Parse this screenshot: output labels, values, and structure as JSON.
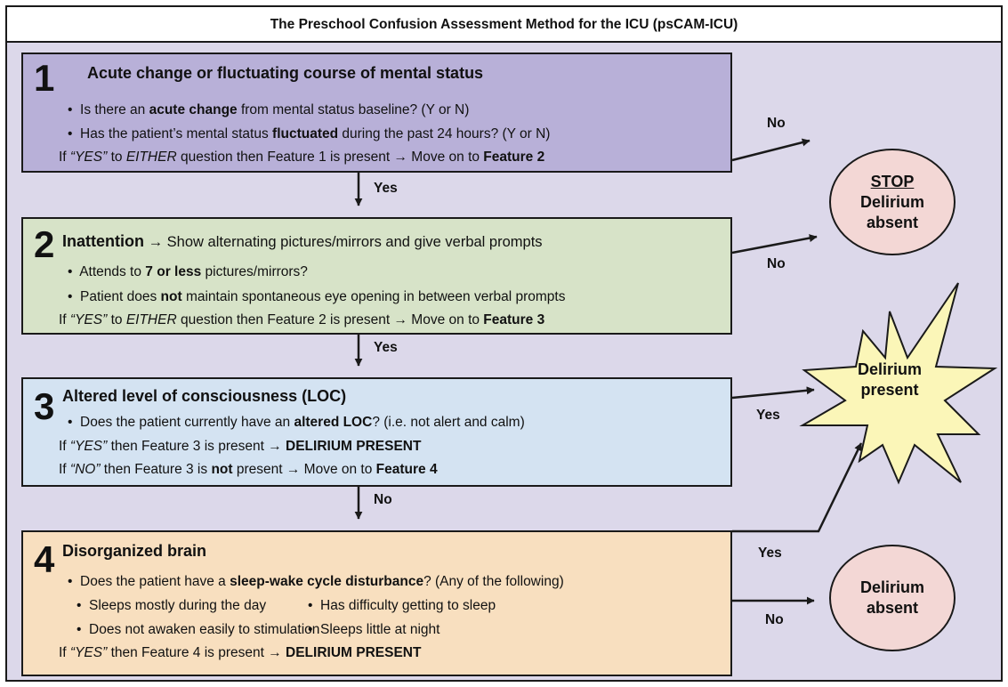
{
  "title": "The Preschool Confusion Assessment Method for the ICU (psCAM-ICU)",
  "features": [
    {
      "number": "1",
      "heading": "Acute change or fluctuating course of mental status",
      "q1_pre": "Is there an ",
      "q1_bold": "acute change",
      "q1_post": " from mental status baseline? (Y or N)",
      "q2_pre": "Has the patient’s mental status ",
      "q2_bold": "fluctuated",
      "q2_post": " during the past 24 hours? (Y or N)",
      "rule_pre": "If ",
      "rule_yes": "“YES”",
      "rule_mid": " to ",
      "rule_either": "EITHER",
      "rule_post": " question then Feature 1 is present → Move on to ",
      "rule_target": "Feature 2"
    },
    {
      "number": "2",
      "heading": "Inattention",
      "heading_post": " → Show alternating pictures/mirrors and give verbal prompts",
      "q1_pre": "Attends to ",
      "q1_bold": "7 or less",
      "q1_post": " pictures/mirrors?",
      "q2_pre": "Patient does ",
      "q2_bold": "not",
      "q2_post": " maintain spontaneous eye opening in between verbal prompts",
      "rule_pre": "If ",
      "rule_yes": "“YES”",
      "rule_mid": " to ",
      "rule_either": "EITHER",
      "rule_post": " question then Feature 2 is present → Move on to ",
      "rule_target": "Feature 3"
    },
    {
      "number": "3",
      "heading": "Altered level of consciousness (LOC)",
      "q1_pre": "Does the patient currently have an ",
      "q1_bold": "altered LOC",
      "q1_post": "? (i.e. not alert and calm)",
      "rule1_pre": "If ",
      "rule1_yes": "“YES”",
      "rule1_post": " then Feature 3 is present → ",
      "rule1_target": "DELIRIUM PRESENT",
      "rule2_pre": "If ",
      "rule2_no": "“NO”",
      "rule2_mid": " then Feature 3 is ",
      "rule2_not": "not",
      "rule2_post": " present → Move on to ",
      "rule2_target": "Feature 4"
    },
    {
      "number": "4",
      "heading": "Disorganized brain",
      "q1_pre": "Does the patient have a ",
      "q1_bold": "sleep-wake cycle disturbance",
      "q1_post": "? (Any of the following)",
      "sub": [
        "Sleeps mostly during the day",
        "Has difficulty getting to sleep",
        "Does not awaken easily to stimulation",
        "Sleeps little at night"
      ],
      "rule_pre": "If ",
      "rule_yes": "“YES”",
      "rule_post": " then Feature 4 is present → ",
      "rule_target": "DELIRIUM PRESENT"
    }
  ],
  "connectors": {
    "yes": "Yes",
    "no": "No"
  },
  "outcomes": {
    "stop": "STOP",
    "absent_line1": "Delirium",
    "absent_line2": "absent",
    "present_line1": "Delirium",
    "present_line2": "present"
  },
  "colors": {
    "feature1": "#b8b0d8",
    "feature2": "#d7e3c8",
    "feature3": "#d4e3f2",
    "feature4": "#f8dfbf",
    "background": "#dcd8ea",
    "oval": "#f3d7d5",
    "star": "#fbf6b8"
  }
}
